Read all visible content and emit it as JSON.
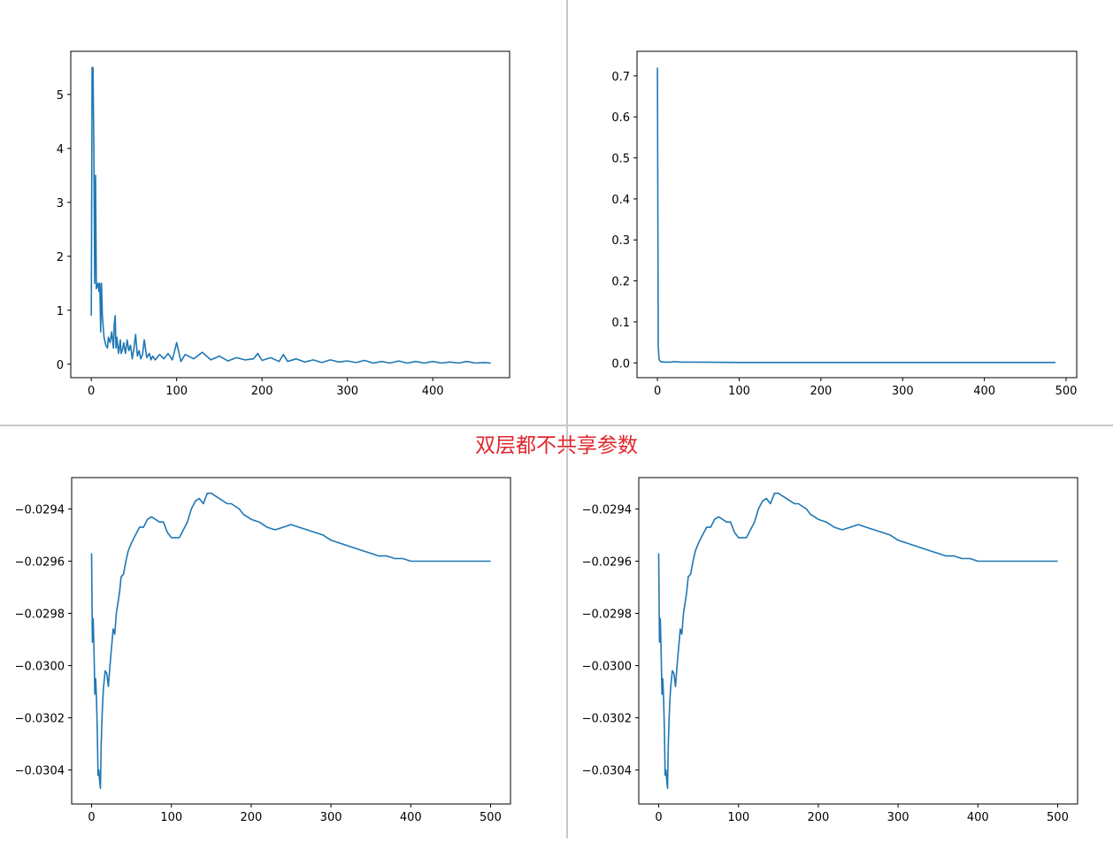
{
  "caption": "双层都不共享参数",
  "colors": {
    "line": "#1f77b4",
    "caption": "#e0262c",
    "divider": "#c8c8c8"
  },
  "chart_data": [
    {
      "type": "line",
      "title": "",
      "xlabel": "",
      "ylabel": "",
      "xlim": [
        -24,
        490
      ],
      "ylim": [
        -0.25,
        5.8
      ],
      "xticks": [
        0,
        100,
        200,
        300,
        400
      ],
      "xtick_labels": [
        "0",
        "100",
        "200",
        "300",
        "400"
      ],
      "yticks": [
        0,
        1,
        2,
        3,
        4,
        5
      ],
      "ytick_labels": [
        "0",
        "1",
        "2",
        "3",
        "4",
        "5"
      ],
      "grid": false,
      "series": [
        {
          "x": [
            0,
            1,
            2,
            3,
            4,
            5,
            6,
            7,
            8,
            9,
            10,
            11,
            12,
            13,
            15,
            17,
            19,
            20,
            22,
            24,
            26,
            27,
            28,
            29,
            30,
            32,
            34,
            35,
            37,
            38,
            40,
            42,
            44,
            46,
            48,
            50,
            52,
            54,
            56,
            58,
            60,
            62,
            65,
            68,
            70,
            72,
            75,
            80,
            85,
            90,
            95,
            100,
            105,
            110,
            120,
            130,
            140,
            150,
            160,
            170,
            180,
            190,
            195,
            200,
            210,
            220,
            225,
            230,
            240,
            250,
            260,
            270,
            280,
            290,
            300,
            310,
            320,
            330,
            340,
            350,
            360,
            370,
            380,
            390,
            400,
            410,
            420,
            430,
            440,
            450,
            460,
            468
          ],
          "y": [
            0.9,
            5.5,
            5.5,
            4.0,
            1.5,
            3.5,
            1.4,
            1.45,
            1.5,
            1.35,
            1.5,
            0.6,
            1.5,
            0.9,
            0.5,
            0.35,
            0.3,
            0.5,
            0.4,
            0.6,
            0.3,
            0.75,
            0.9,
            0.3,
            0.5,
            0.2,
            0.45,
            0.2,
            0.3,
            0.4,
            0.2,
            0.45,
            0.25,
            0.35,
            0.1,
            0.3,
            0.55,
            0.15,
            0.25,
            0.1,
            0.18,
            0.45,
            0.12,
            0.2,
            0.08,
            0.15,
            0.08,
            0.18,
            0.1,
            0.2,
            0.08,
            0.4,
            0.05,
            0.18,
            0.1,
            0.22,
            0.08,
            0.15,
            0.06,
            0.12,
            0.08,
            0.1,
            0.2,
            0.07,
            0.12,
            0.05,
            0.18,
            0.05,
            0.1,
            0.04,
            0.08,
            0.03,
            0.08,
            0.04,
            0.06,
            0.03,
            0.07,
            0.02,
            0.05,
            0.02,
            0.06,
            0.02,
            0.05,
            0.02,
            0.05,
            0.02,
            0.04,
            0.02,
            0.05,
            0.02,
            0.03,
            0.02
          ]
        }
      ]
    },
    {
      "type": "line",
      "title": "",
      "xlabel": "",
      "ylabel": "",
      "xlim": [
        -25,
        513
      ],
      "ylim": [
        -0.036,
        0.76
      ],
      "xticks": [
        0,
        100,
        200,
        300,
        400,
        500
      ],
      "xtick_labels": [
        "0",
        "100",
        "200",
        "300",
        "400",
        "500"
      ],
      "yticks": [
        0.0,
        0.1,
        0.2,
        0.3,
        0.4,
        0.5,
        0.6,
        0.7
      ],
      "ytick_labels": [
        "0.0",
        "0.1",
        "0.2",
        "0.3",
        "0.4",
        "0.5",
        "0.6",
        "0.7"
      ],
      "grid": false,
      "series": [
        {
          "x": [
            0,
            1,
            2,
            3,
            4,
            5,
            8,
            12,
            16,
            20,
            30,
            50,
            100,
            200,
            300,
            400,
            487
          ],
          "y": [
            0.72,
            0.04,
            0.01,
            0.005,
            0.003,
            0.003,
            0.002,
            0.002,
            0.002,
            0.003,
            0.002,
            0.002,
            0.001,
            0.001,
            0.001,
            0.001,
            0.001
          ]
        }
      ]
    },
    {
      "type": "line",
      "title": "",
      "xlabel": "",
      "ylabel": "",
      "xlim": [
        -25,
        525
      ],
      "ylim": [
        -0.03053,
        -0.02928
      ],
      "xticks": [
        0,
        100,
        200,
        300,
        400,
        500
      ],
      "xtick_labels": [
        "0",
        "100",
        "200",
        "300",
        "400",
        "500"
      ],
      "yticks": [
        -0.0304,
        -0.0302,
        -0.03,
        -0.0298,
        -0.0296,
        -0.0294
      ],
      "ytick_labels": [
        "−0.0304",
        "−0.0302",
        "−0.0300",
        "−0.0298",
        "−0.0296",
        "−0.0294"
      ],
      "grid": false,
      "series": [
        {
          "x": [
            0,
            1,
            2,
            3,
            4,
            5,
            6,
            7,
            8,
            9,
            10,
            11,
            12,
            13,
            14,
            15,
            17,
            19,
            21,
            23,
            25,
            27,
            29,
            31,
            33,
            35,
            37,
            40,
            43,
            46,
            50,
            55,
            60,
            65,
            70,
            75,
            80,
            85,
            90,
            95,
            100,
            105,
            110,
            115,
            120,
            125,
            130,
            135,
            140,
            145,
            150,
            155,
            160,
            165,
            170,
            175,
            180,
            185,
            190,
            200,
            210,
            220,
            230,
            240,
            250,
            260,
            270,
            280,
            290,
            300,
            310,
            320,
            330,
            340,
            350,
            360,
            370,
            380,
            390,
            400,
            410,
            420,
            430,
            440,
            450,
            460,
            470,
            480,
            490,
            500
          ],
          "y": [
            -0.02957,
            -0.02991,
            -0.02982,
            -0.02995,
            -0.03011,
            -0.03005,
            -0.03012,
            -0.03024,
            -0.03042,
            -0.0304,
            -0.03044,
            -0.03047,
            -0.0303,
            -0.0302,
            -0.03013,
            -0.03008,
            -0.03002,
            -0.03003,
            -0.03008,
            -0.03,
            -0.02993,
            -0.02986,
            -0.02988,
            -0.0298,
            -0.02976,
            -0.02972,
            -0.02966,
            -0.02965,
            -0.0296,
            -0.02956,
            -0.02953,
            -0.0295,
            -0.02947,
            -0.02947,
            -0.02944,
            -0.02943,
            -0.02944,
            -0.02945,
            -0.02945,
            -0.02949,
            -0.02951,
            -0.02951,
            -0.02951,
            -0.02948,
            -0.02945,
            -0.0294,
            -0.02937,
            -0.02936,
            -0.02938,
            -0.02934,
            -0.02934,
            -0.02935,
            -0.02936,
            -0.02937,
            -0.02938,
            -0.02938,
            -0.02939,
            -0.0294,
            -0.02942,
            -0.02944,
            -0.02945,
            -0.02947,
            -0.02948,
            -0.02947,
            -0.02946,
            -0.02947,
            -0.02948,
            -0.02949,
            -0.0295,
            -0.02952,
            -0.02953,
            -0.02954,
            -0.02955,
            -0.02956,
            -0.02957,
            -0.02958,
            -0.02958,
            -0.02959,
            -0.02959,
            -0.0296,
            -0.0296,
            -0.0296,
            -0.0296,
            -0.0296,
            -0.0296,
            -0.0296,
            -0.0296,
            -0.0296,
            -0.0296,
            -0.0296
          ]
        }
      ]
    },
    {
      "type": "line",
      "title": "",
      "xlabel": "",
      "ylabel": "",
      "xlim": [
        -25,
        525
      ],
      "ylim": [
        -0.03053,
        -0.02928
      ],
      "xticks": [
        0,
        100,
        200,
        300,
        400,
        500
      ],
      "xtick_labels": [
        "0",
        "100",
        "200",
        "300",
        "400",
        "500"
      ],
      "yticks": [
        -0.0304,
        -0.0302,
        -0.03,
        -0.0298,
        -0.0296,
        -0.0294
      ],
      "ytick_labels": [
        "−0.0304",
        "−0.0302",
        "−0.0300",
        "−0.0298",
        "−0.0296",
        "−0.0294"
      ],
      "grid": false,
      "series": [
        {
          "x": [
            0,
            1,
            2,
            3,
            4,
            5,
            6,
            7,
            8,
            9,
            10,
            11,
            12,
            13,
            14,
            15,
            17,
            19,
            21,
            23,
            25,
            27,
            29,
            31,
            33,
            35,
            37,
            40,
            43,
            46,
            50,
            55,
            60,
            65,
            70,
            75,
            80,
            85,
            90,
            95,
            100,
            105,
            110,
            115,
            120,
            125,
            130,
            135,
            140,
            145,
            150,
            155,
            160,
            165,
            170,
            175,
            180,
            185,
            190,
            200,
            210,
            220,
            230,
            240,
            250,
            260,
            270,
            280,
            290,
            300,
            310,
            320,
            330,
            340,
            350,
            360,
            370,
            380,
            390,
            400,
            410,
            420,
            430,
            440,
            450,
            460,
            470,
            480,
            490,
            500
          ],
          "y": [
            -0.02957,
            -0.02991,
            -0.02982,
            -0.02995,
            -0.03011,
            -0.03005,
            -0.03012,
            -0.03024,
            -0.03042,
            -0.0304,
            -0.03044,
            -0.03047,
            -0.0303,
            -0.0302,
            -0.03013,
            -0.03008,
            -0.03002,
            -0.03003,
            -0.03008,
            -0.03,
            -0.02993,
            -0.02986,
            -0.02988,
            -0.0298,
            -0.02976,
            -0.02972,
            -0.02966,
            -0.02965,
            -0.0296,
            -0.02956,
            -0.02953,
            -0.0295,
            -0.02947,
            -0.02947,
            -0.02944,
            -0.02943,
            -0.02944,
            -0.02945,
            -0.02945,
            -0.02949,
            -0.02951,
            -0.02951,
            -0.02951,
            -0.02948,
            -0.02945,
            -0.0294,
            -0.02937,
            -0.02936,
            -0.02938,
            -0.02934,
            -0.02934,
            -0.02935,
            -0.02936,
            -0.02937,
            -0.02938,
            -0.02938,
            -0.02939,
            -0.0294,
            -0.02942,
            -0.02944,
            -0.02945,
            -0.02947,
            -0.02948,
            -0.02947,
            -0.02946,
            -0.02947,
            -0.02948,
            -0.02949,
            -0.0295,
            -0.02952,
            -0.02953,
            -0.02954,
            -0.02955,
            -0.02956,
            -0.02957,
            -0.02958,
            -0.02958,
            -0.02959,
            -0.02959,
            -0.0296,
            -0.0296,
            -0.0296,
            -0.0296,
            -0.0296,
            -0.0296,
            -0.0296,
            -0.0296,
            -0.0296,
            -0.0296,
            -0.0296
          ]
        }
      ]
    }
  ]
}
